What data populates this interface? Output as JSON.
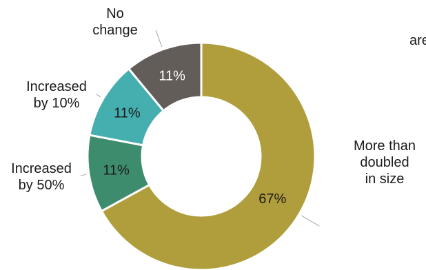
{
  "chart_data": {
    "type": "pie",
    "variant": "donut",
    "categories": [
      "More than doubled in size",
      "Increased by 50%",
      "Increased by 10%",
      "No change"
    ],
    "values": [
      67,
      11,
      11,
      11
    ],
    "value_labels": [
      "67%",
      "11%",
      "11%",
      "11%"
    ],
    "colors": [
      "#B09E3C",
      "#3E8C6E",
      "#45AEAE",
      "#635D59"
    ],
    "title": "",
    "legend": "none"
  },
  "labels": {
    "no_change_line1": "No",
    "no_change_line2": "change",
    "inc10_line1": "Increased",
    "inc10_line2": "by 10%",
    "inc50_line1": "Increased",
    "inc50_line2": "by 50%",
    "doubled_line1": "More than",
    "doubled_line2": "doubled",
    "doubled_line3": "in size",
    "cutoff_text": "are"
  }
}
